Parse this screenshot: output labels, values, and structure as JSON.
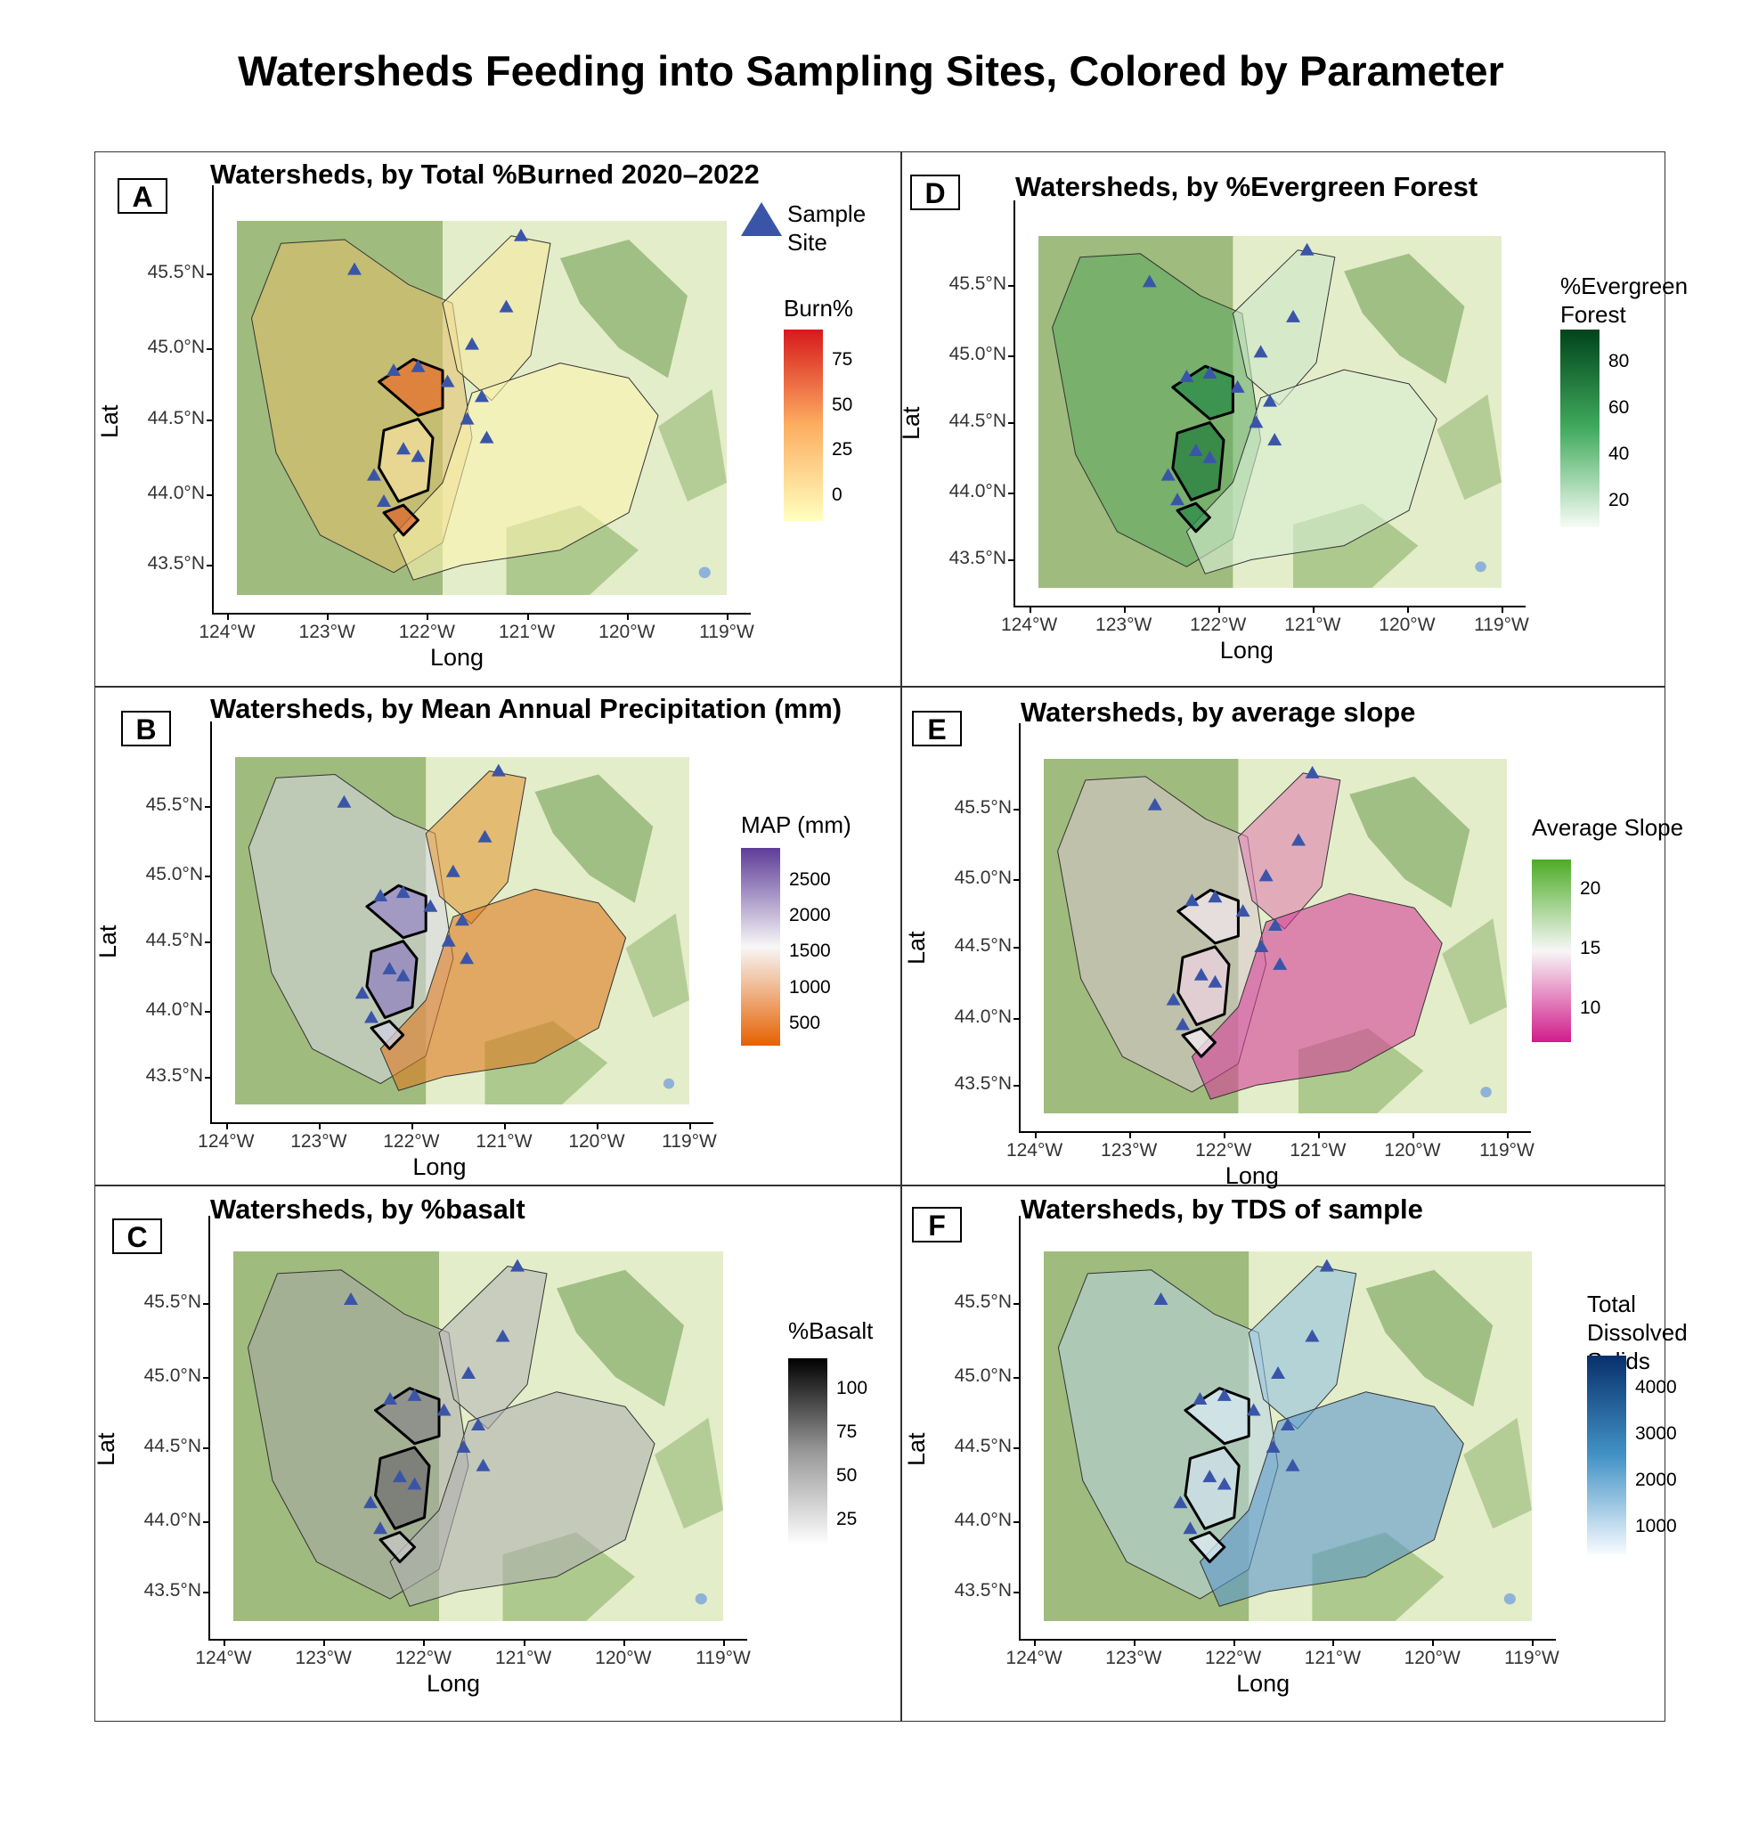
{
  "title": "Watersheds Feeding into Sampling Sites, Colored by Parameter",
  "axes": {
    "x_label": "Long",
    "y_label": "Lat",
    "x_ticks": [
      "124°W",
      "123°W",
      "122°W",
      "121°W",
      "120°W",
      "119°W"
    ],
    "y_ticks": [
      "45.5°N",
      "45.0°N",
      "44.5°N",
      "44.0°N",
      "43.5°N"
    ]
  },
  "panels": [
    {
      "letter": "A",
      "title": "Watersheds, by Total %Burned 2020–2022",
      "legend_title": "Burn%",
      "legend_ticks": [
        "75",
        "50",
        "25",
        "0"
      ],
      "colors": [
        "#d7191c",
        "#fdae61",
        "#ffffbf"
      ],
      "site_legend": "Sample Site"
    },
    {
      "letter": "B",
      "title": "Watersheds, by Mean Annual Precipitation (mm)",
      "legend_title": "MAP (mm)",
      "legend_ticks": [
        "2500",
        "2000",
        "1500",
        "1000",
        "500"
      ],
      "colors": [
        "#5e3c99",
        "#f7f7f7",
        "#e66101"
      ]
    },
    {
      "letter": "C",
      "title": "Watersheds, by %basalt",
      "legend_title": "%Basalt",
      "legend_ticks": [
        "100",
        "75",
        "50",
        "25"
      ],
      "colors": [
        "#000000",
        "#999999",
        "#ffffff"
      ]
    },
    {
      "letter": "D",
      "title": "Watersheds, by %Evergreen Forest",
      "legend_title": "%Evergreen Forest",
      "legend_ticks": [
        "80",
        "60",
        "40",
        "20"
      ],
      "colors": [
        "#00441b",
        "#41ab5d",
        "#f7fcf5"
      ]
    },
    {
      "letter": "E",
      "title": "Watersheds, by average slope",
      "legend_title": "Average Slope",
      "legend_ticks": [
        "20",
        "15",
        "10"
      ],
      "colors": [
        "#4dac26",
        "#f7f7f7",
        "#d01c8b"
      ]
    },
    {
      "letter": "F",
      "title": "Watersheds, by TDS of sample",
      "legend_title": "Total Dissolved Solids",
      "legend_ticks": [
        "4000",
        "3000",
        "2000",
        "1000"
      ],
      "colors": [
        "#08306b",
        "#4292c6",
        "#f7fbff"
      ]
    }
  ],
  "site_legend_label": "Sample Site"
}
